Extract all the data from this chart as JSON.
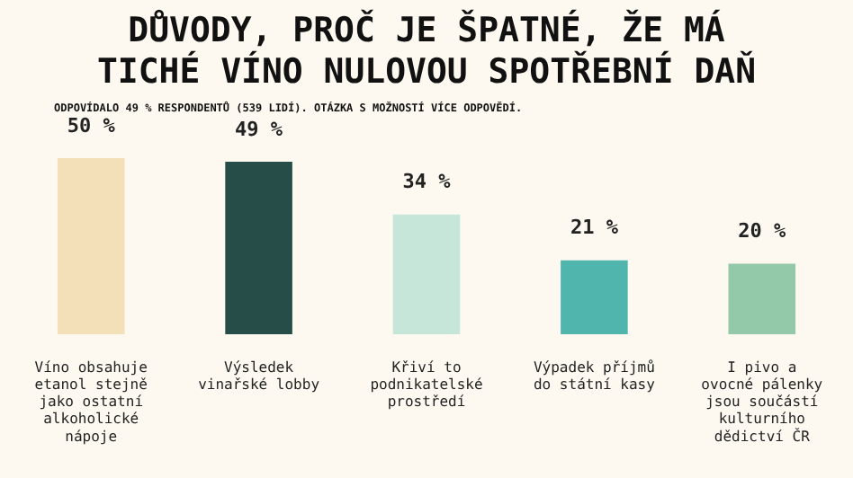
{
  "chart_data": {
    "type": "bar",
    "title": "DŮVODY, PROČ JE ŠPATNÉ, ŽE MÁ TICHÉ VÍNO NULOVOU SPOTŘEBNÍ DAŇ",
    "subtitle": "ODPOVÍDALO 49 % RESPONDENTŮ (539 LIDÍ). OTÁZKA S MOŽNOSTÍ VÍCE ODPOVĚDÍ.",
    "categories": [
      "Víno obsahuje etanol stejně jako ostatní alkoholické nápoje",
      "Výsledek vinařské lobby",
      "Křiví to podnikatelské prostředí",
      "Výpadek příjmů do státní kasy",
      "I pivo a ovocné pálenky jsou součástí kulturního dědictví ČR"
    ],
    "values": [
      50,
      49,
      34,
      21,
      20
    ],
    "colors": [
      "#f3dfb8",
      "#264d48",
      "#c5e6d8",
      "#4fb5ad",
      "#93c9a9"
    ],
    "value_labels": [
      "50 %",
      "49 %",
      "34 %",
      "21 %",
      "20 %"
    ]
  }
}
